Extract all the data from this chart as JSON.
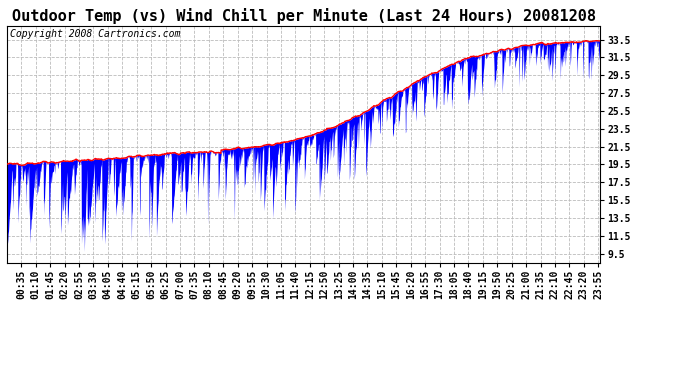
{
  "title": "Outdoor Temp (vs) Wind Chill per Minute (Last 24 Hours) 20081208",
  "copyright": "Copyright 2008 Cartronics.com",
  "ylabel_right_ticks": [
    9.5,
    11.5,
    13.5,
    15.5,
    17.5,
    19.5,
    21.5,
    23.5,
    25.5,
    27.5,
    29.5,
    31.5,
    33.5
  ],
  "ylim_bottom": 8.5,
  "ylim_top": 35.0,
  "xlim_start": 0,
  "xlim_end": 1440,
  "x_tick_labels": [
    "00:35",
    "01:10",
    "01:45",
    "02:20",
    "02:55",
    "03:30",
    "04:05",
    "04:40",
    "05:15",
    "05:50",
    "06:25",
    "07:00",
    "07:35",
    "08:10",
    "08:45",
    "09:20",
    "09:55",
    "10:30",
    "11:05",
    "11:40",
    "12:15",
    "12:50",
    "13:25",
    "14:00",
    "14:35",
    "15:10",
    "15:45",
    "16:20",
    "16:55",
    "17:30",
    "18:05",
    "18:40",
    "19:15",
    "19:50",
    "20:25",
    "21:00",
    "21:35",
    "22:10",
    "22:45",
    "23:20",
    "23:55"
  ],
  "line_color_red": "#FF0000",
  "fill_color_blue": "#0000FF",
  "bg_color": "#FFFFFF",
  "grid_color": "#BBBBBB",
  "title_fontsize": 11,
  "copyright_fontsize": 7,
  "tick_fontsize": 7,
  "temp_start": 19.5,
  "temp_end": 33.5,
  "temp_plateau_start": 430,
  "temp_plateau_end": 520,
  "temp_plateau_val": 20.8
}
